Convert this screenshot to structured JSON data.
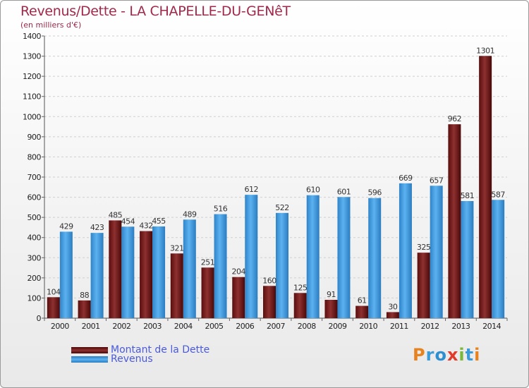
{
  "title": "Revenus/Dette - LA CHAPELLE-DU-GENêT",
  "subtitle": "(en milliers d'€)",
  "logo": "Proxiti",
  "colors": {
    "debt": "#7a1f1f",
    "revenue": "#4aa3e6",
    "title": "#a0284a",
    "legend_text": "#4a5ad8"
  },
  "legend": [
    {
      "label": "Montant de la Dette",
      "color": "#7a1f1f"
    },
    {
      "label": "Revenus",
      "color": "#4aa3e6"
    }
  ],
  "chart_data": {
    "type": "bar",
    "categories": [
      "2000",
      "2001",
      "2002",
      "2003",
      "2004",
      "2005",
      "2006",
      "2007",
      "2008",
      "2009",
      "2010",
      "2011",
      "2012",
      "2013",
      "2014"
    ],
    "series": [
      {
        "name": "Montant de la Dette",
        "values": [
          104,
          88,
          485,
          432,
          321,
          251,
          204,
          160,
          125,
          91,
          61,
          30,
          325,
          962,
          1301
        ]
      },
      {
        "name": "Revenus",
        "values": [
          429,
          423,
          454,
          455,
          489,
          516,
          612,
          522,
          610,
          601,
          596,
          669,
          657,
          581,
          587
        ]
      }
    ],
    "ylim": [
      0,
      1400
    ],
    "yticks": [
      0,
      100,
      200,
      300,
      400,
      500,
      600,
      700,
      800,
      900,
      1000,
      1100,
      1200,
      1300,
      1400
    ],
    "grid": true,
    "legend_position": "bottom-left"
  }
}
